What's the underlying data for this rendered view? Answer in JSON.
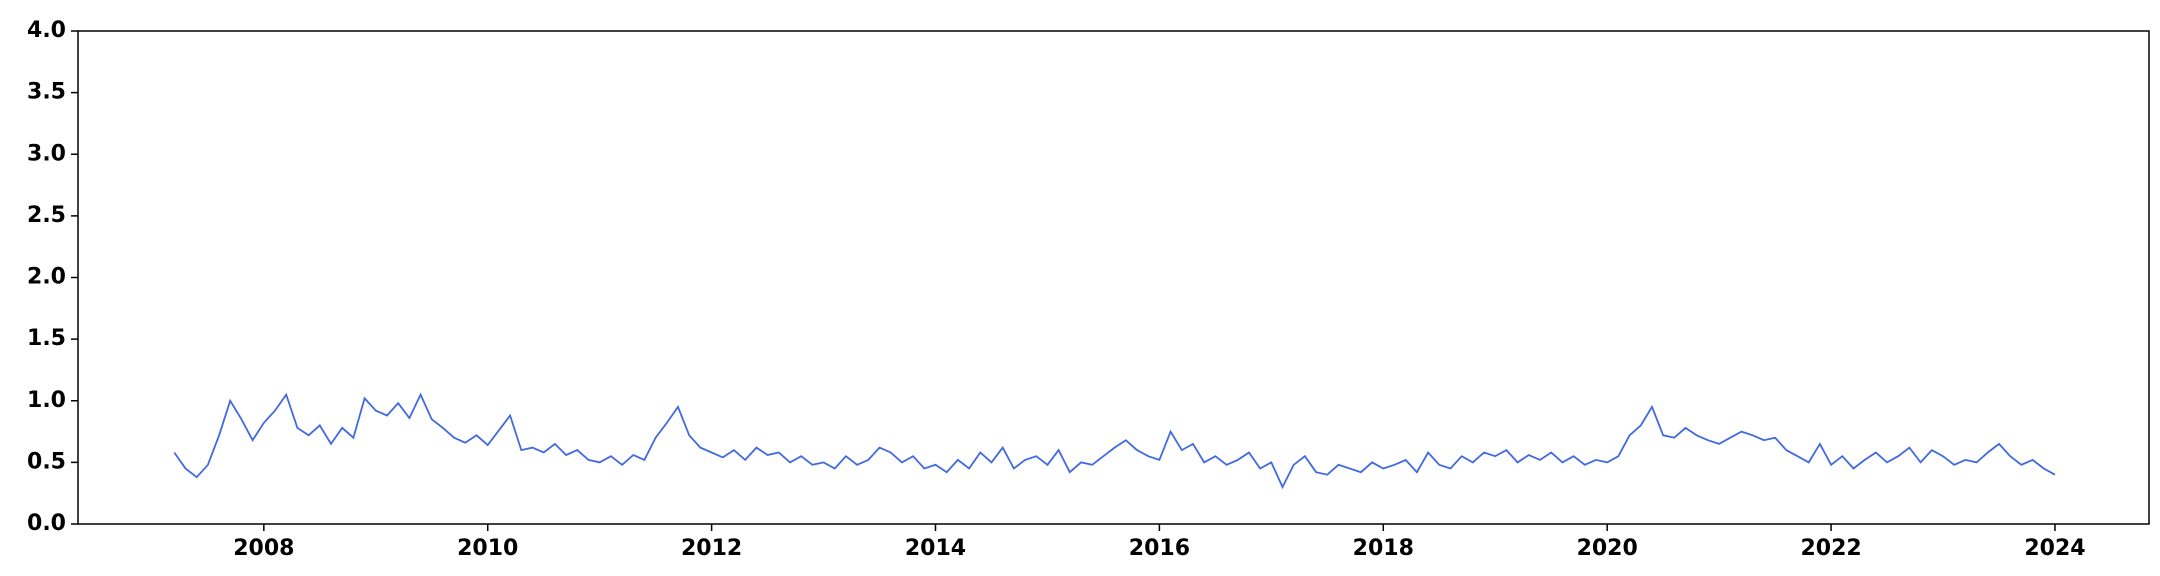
{
  "chart_data": {
    "type": "line",
    "x": [
      2007.2,
      2007.3,
      2007.4,
      2007.5,
      2007.6,
      2007.7,
      2007.8,
      2007.9,
      2008.0,
      2008.1,
      2008.2,
      2008.3,
      2008.4,
      2008.5,
      2008.6,
      2008.7,
      2008.8,
      2008.9,
      2009.0,
      2009.1,
      2009.2,
      2009.3,
      2009.4,
      2009.5,
      2009.6,
      2009.7,
      2009.8,
      2009.9,
      2010.0,
      2010.1,
      2010.2,
      2010.3,
      2010.4,
      2010.5,
      2010.6,
      2010.7,
      2010.8,
      2010.9,
      2011.0,
      2011.1,
      2011.2,
      2011.3,
      2011.4,
      2011.5,
      2011.6,
      2011.7,
      2011.8,
      2011.9,
      2012.0,
      2012.1,
      2012.2,
      2012.3,
      2012.4,
      2012.5,
      2012.6,
      2012.7,
      2012.8,
      2012.9,
      2013.0,
      2013.1,
      2013.2,
      2013.3,
      2013.4,
      2013.5,
      2013.6,
      2013.7,
      2013.8,
      2013.9,
      2014.0,
      2014.1,
      2014.2,
      2014.3,
      2014.4,
      2014.5,
      2014.6,
      2014.7,
      2014.8,
      2014.9,
      2015.0,
      2015.1,
      2015.2,
      2015.3,
      2015.4,
      2015.5,
      2015.6,
      2015.7,
      2015.8,
      2015.9,
      2016.0,
      2016.1,
      2016.2,
      2016.3,
      2016.4,
      2016.5,
      2016.6,
      2016.7,
      2016.8,
      2016.9,
      2017.0,
      2017.1,
      2017.2,
      2017.3,
      2017.4,
      2017.5,
      2017.6,
      2017.7,
      2017.8,
      2017.9,
      2018.0,
      2018.1,
      2018.2,
      2018.3,
      2018.4,
      2018.5,
      2018.6,
      2018.7,
      2018.8,
      2018.9,
      2019.0,
      2019.1,
      2019.2,
      2019.3,
      2019.4,
      2019.5,
      2019.6,
      2019.7,
      2019.8,
      2019.9,
      2020.0,
      2020.1,
      2020.2,
      2020.3,
      2020.4,
      2020.5,
      2020.6,
      2020.7,
      2020.8,
      2020.9,
      2021.0,
      2021.1,
      2021.2,
      2021.3,
      2021.4,
      2021.5,
      2021.6,
      2021.7,
      2021.8,
      2021.9,
      2022.0,
      2022.1,
      2022.2,
      2022.3,
      2022.4,
      2022.5,
      2022.6,
      2022.7,
      2022.8,
      2022.9,
      2023.0,
      2023.1,
      2023.2,
      2023.3,
      2023.4,
      2023.5,
      2023.6,
      2023.7,
      2023.8,
      2023.9,
      2024.0
    ],
    "series": [
      {
        "color": "#4169e1",
        "values": [
          0.58,
          0.45,
          0.38,
          0.48,
          0.72,
          1.0,
          0.85,
          0.68,
          0.82,
          0.92,
          1.05,
          0.78,
          0.72,
          0.8,
          0.65,
          0.78,
          0.7,
          1.02,
          0.92,
          0.88,
          0.98,
          0.86,
          1.05,
          0.85,
          0.78,
          0.7,
          0.66,
          0.72,
          0.64,
          0.76,
          0.88,
          0.6,
          0.62,
          0.58,
          0.65,
          0.56,
          0.6,
          0.52,
          0.5,
          0.55,
          0.48,
          0.56,
          0.52,
          0.7,
          0.82,
          0.95,
          0.72,
          0.62,
          0.58,
          0.54,
          0.6,
          0.52,
          0.62,
          0.56,
          0.58,
          0.5,
          0.55,
          0.48,
          0.5,
          0.45,
          0.55,
          0.48,
          0.52,
          0.62,
          0.58,
          0.5,
          0.55,
          0.45,
          0.48,
          0.42,
          0.52,
          0.45,
          0.58,
          0.5,
          0.62,
          0.45,
          0.52,
          0.55,
          0.48,
          0.6,
          0.42,
          0.5,
          0.48,
          0.55,
          0.62,
          0.68,
          0.6,
          0.55,
          0.52,
          0.75,
          0.6,
          0.65,
          0.5,
          0.55,
          0.48,
          0.52,
          0.58,
          0.45,
          0.5,
          0.3,
          0.48,
          0.55,
          0.42,
          0.4,
          0.48,
          0.45,
          0.42,
          0.5,
          0.45,
          0.48,
          0.52,
          0.42,
          0.58,
          0.48,
          0.45,
          0.55,
          0.5,
          0.58,
          0.55,
          0.6,
          0.5,
          0.56,
          0.52,
          0.58,
          0.5,
          0.55,
          0.48,
          0.52,
          0.5,
          0.55,
          0.72,
          0.8,
          0.95,
          0.72,
          0.7,
          0.78,
          0.72,
          0.68,
          0.65,
          0.7,
          0.75,
          0.72,
          0.68,
          0.7,
          0.6,
          0.55,
          0.5,
          0.65,
          0.48,
          0.55,
          0.45,
          0.52,
          0.58,
          0.5,
          0.55,
          0.62,
          0.5,
          0.6,
          0.55,
          0.48,
          0.52,
          0.5,
          0.58,
          0.65,
          0.55,
          0.48,
          0.52,
          0.45,
          0.4
        ]
      }
    ],
    "xlim": [
      2006.34,
      2024.84
    ],
    "xticks": [
      2008,
      2010,
      2012,
      2014,
      2016,
      2018,
      2020,
      2022,
      2024
    ],
    "ylim": [
      0,
      4
    ],
    "yticks": [
      {
        "value": 0,
        "label": "0.0"
      },
      0.5,
      {
        "value": 1,
        "label": "1.0"
      },
      1.5,
      {
        "value": 2,
        "label": "2.0"
      },
      2.5,
      {
        "value": 3,
        "label": "3.0"
      },
      3.5,
      {
        "value": 4,
        "label": "4.0"
      }
    ]
  }
}
